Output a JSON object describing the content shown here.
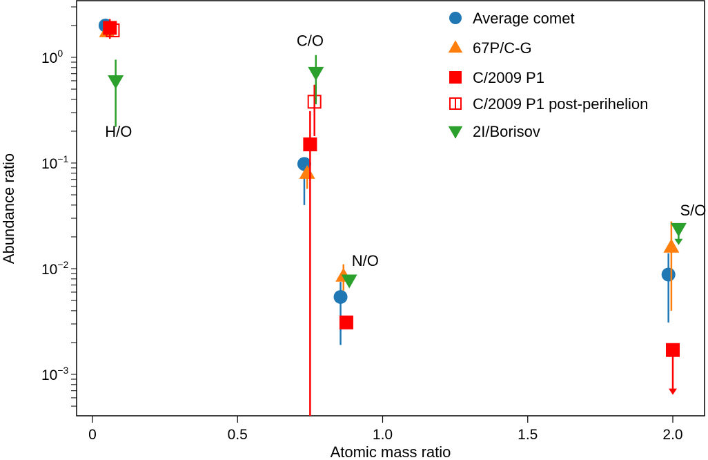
{
  "chart_data": {
    "type": "scatter",
    "xlabel": "Atomic mass ratio",
    "ylabel": "Abundance ratio",
    "x_scale": "linear",
    "y_scale": "log",
    "xlim": [
      -0.055,
      2.12
    ],
    "ylim": [
      0.00041,
      3.5
    ],
    "x_ticks": [
      {
        "value": 0,
        "label": "0"
      },
      {
        "value": 0.5,
        "label": "0.5"
      },
      {
        "value": 1.0,
        "label": "1.0"
      },
      {
        "value": 1.5,
        "label": "1.5"
      },
      {
        "value": 2.0,
        "label": "2.0"
      }
    ],
    "y_ticks": [
      {
        "value": 1,
        "base": "10",
        "exp": "0"
      },
      {
        "value": 0.1,
        "base": "10",
        "exp": "−1"
      },
      {
        "value": 0.01,
        "base": "10",
        "exp": "−2"
      },
      {
        "value": 0.001,
        "base": "10",
        "exp": "−3"
      }
    ],
    "grid": false,
    "legend_position": "top-right",
    "annotations": [
      {
        "text": "H/O",
        "x": 0.09,
        "y": 0.2
      },
      {
        "text": "C/O",
        "x": 0.75,
        "y": 1.45
      },
      {
        "text": "N/O",
        "x": 0.94,
        "y": 0.012
      },
      {
        "text": "S/O",
        "x": 2.07,
        "y": 0.036
      }
    ],
    "series": [
      {
        "name": "Average comet",
        "marker": "circle",
        "color": "#1f77b4",
        "points": [
          {
            "x": 0.045,
            "y": 2.0
          },
          {
            "x": 0.73,
            "y": 0.098,
            "err_low": 0.04,
            "err_high": 0.098
          },
          {
            "x": 0.855,
            "y": 0.0054,
            "err_low": 0.0019,
            "err_high": 0.0075
          },
          {
            "x": 1.985,
            "y": 0.0088,
            "err_low": 0.0031,
            "err_high": 0.014
          }
        ]
      },
      {
        "name": "67P/C-G",
        "marker": "triangle-up",
        "color": "#ff7f0e",
        "points": [
          {
            "x": 0.05,
            "y": 1.75
          },
          {
            "x": 0.74,
            "y": 0.08,
            "err_low": 0.057,
            "err_high": 0.08
          },
          {
            "x": 0.865,
            "y": 0.0085,
            "err_low": 0.0062,
            "err_high": 0.011
          },
          {
            "x": 1.995,
            "y": 0.016,
            "err_low": 0.004,
            "err_high": 0.028
          }
        ]
      },
      {
        "name": "C/2009 P1",
        "marker": "square",
        "color": "#ff0000",
        "points": [
          {
            "x": 0.06,
            "y": 1.9,
            "err_low": 1.5,
            "err_high": 2.3
          },
          {
            "x": 0.75,
            "y": 0.15,
            "err_low": 0.0001,
            "err_high": 0.31
          },
          {
            "x": 0.875,
            "y": 0.0031
          },
          {
            "x": 2.0,
            "y": 0.0017,
            "upper_limit": true,
            "arrow_to": 0.00065
          }
        ]
      },
      {
        "name": "C/2009 P1 post-perihelion",
        "marker": "open-square",
        "color": "#ff0000",
        "points": [
          {
            "x": 0.07,
            "y": 1.8
          },
          {
            "x": 0.765,
            "y": 0.38,
            "err_low": 0.18,
            "err_high": 0.55
          }
        ]
      },
      {
        "name": "2I/Borisov",
        "marker": "triangle-down",
        "color": "#2ca02c",
        "points": [
          {
            "x": 0.08,
            "y": 0.6,
            "err_low": 0.22,
            "err_high": 0.95
          },
          {
            "x": 0.77,
            "y": 0.72,
            "err_low": 0.36,
            "err_high": 1.05
          },
          {
            "x": 0.885,
            "y": 0.0078
          },
          {
            "x": 2.02,
            "y": 0.024,
            "upper_limit": true,
            "arrow_to": 0.017
          }
        ]
      }
    ]
  }
}
